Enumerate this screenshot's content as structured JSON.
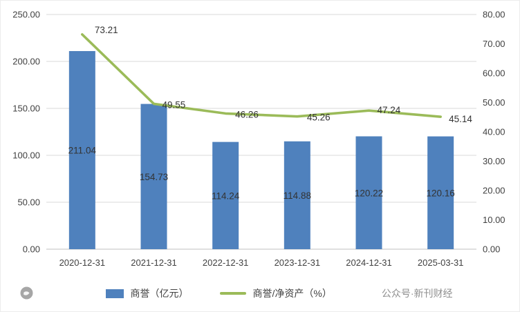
{
  "chart_data": {
    "type": "bar",
    "subtype": "bar-line-combo",
    "categories": [
      "2020-12-31",
      "2021-12-31",
      "2022-12-31",
      "2023-12-31",
      "2024-12-31",
      "2025-03-31"
    ],
    "series": [
      {
        "name": "商誉（亿元）",
        "type": "bar",
        "axis": "left",
        "color": "#4F81BD",
        "values": [
          211.04,
          154.73,
          114.24,
          114.88,
          120.22,
          120.16
        ]
      },
      {
        "name": "商誉/净资产（%）",
        "type": "line",
        "axis": "right",
        "color": "#9BBB59",
        "values": [
          73.21,
          49.55,
          46.26,
          45.26,
          47.24,
          45.14
        ]
      }
    ],
    "title": "",
    "xlabel": "",
    "ylabel": "",
    "left_axis": {
      "min": 0,
      "max": 250,
      "step": 50,
      "decimals": 2
    },
    "right_axis": {
      "min": 0,
      "max": 80,
      "step": 10,
      "decimals": 2
    },
    "grid": true,
    "legend_position": "bottom",
    "data_labels": true
  },
  "watermark": {
    "text": "公众号·新刊财经",
    "icon": "circle-logo"
  },
  "colors": {
    "gridline": "#d9d9d9",
    "axis_line": "#bfbfbf",
    "tick_text": "#404040",
    "label_text": "#333333",
    "watermark_text": "#8f8f8f",
    "watermark_icon": "#a6a6a6"
  }
}
